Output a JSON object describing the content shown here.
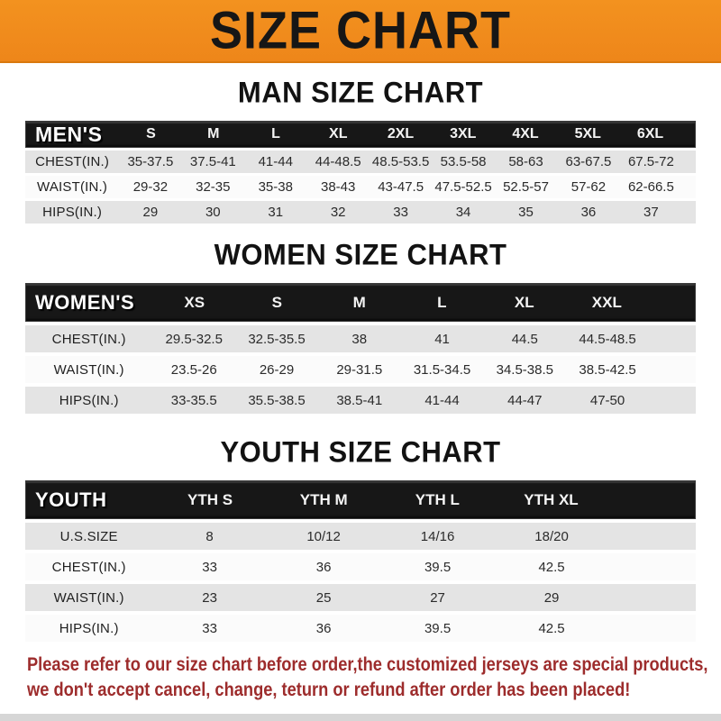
{
  "banner": {
    "title": "SIZE CHART"
  },
  "colors": {
    "banner_bg": "#EE861A",
    "band_bg": "#171717",
    "row_alt_bg": "#E4E4E4",
    "row_bg": "#FBFBFB",
    "note_red": "#9D2C2C"
  },
  "sections": [
    {
      "heading": "MAN SIZE CHART",
      "band_label": "MEN'S",
      "columns": [
        "S",
        "M",
        "L",
        "XL",
        "2XL",
        "3XL",
        "4XL",
        "5XL",
        "6XL"
      ],
      "rows": [
        {
          "label": "CHEST(IN.)",
          "values": [
            "35-37.5",
            "37.5-41",
            "41-44",
            "44-48.5",
            "48.5-53.5",
            "53.5-58",
            "58-63",
            "63-67.5",
            "67.5-72"
          ]
        },
        {
          "label": "WAIST(IN.)",
          "values": [
            "29-32",
            "32-35",
            "35-38",
            "38-43",
            "43-47.5",
            "47.5-52.5",
            "52.5-57",
            "57-62",
            "62-66.5"
          ]
        },
        {
          "label": "HIPS(IN.)",
          "values": [
            "29",
            "30",
            "31",
            "32",
            "33",
            "34",
            "35",
            "36",
            "37"
          ]
        }
      ]
    },
    {
      "heading": "WOMEN SIZE CHART",
      "band_label": "WOMEN'S",
      "columns": [
        "XS",
        "S",
        "M",
        "L",
        "XL",
        "XXL"
      ],
      "rows": [
        {
          "label": "CHEST(IN.)",
          "values": [
            "29.5-32.5",
            "32.5-35.5",
            "38",
            "41",
            "44.5",
            "44.5-48.5"
          ]
        },
        {
          "label": "WAIST(IN.)",
          "values": [
            "23.5-26",
            "26-29",
            "29-31.5",
            "31.5-34.5",
            "34.5-38.5",
            "38.5-42.5"
          ]
        },
        {
          "label": "HIPS(IN.)",
          "values": [
            "33-35.5",
            "35.5-38.5",
            "38.5-41",
            "41-44",
            "44-47",
            "47-50"
          ]
        }
      ]
    },
    {
      "heading": "YOUTH SIZE CHART",
      "band_label": "YOUTH",
      "columns": [
        "YTH S",
        "YTH M",
        "YTH L",
        "YTH XL"
      ],
      "rows": [
        {
          "label": "U.S.SIZE",
          "values": [
            "8",
            "10/12",
            "14/16",
            "18/20"
          ]
        },
        {
          "label": "CHEST(IN.)",
          "values": [
            "33",
            "36",
            "39.5",
            "42.5"
          ]
        },
        {
          "label": "WAIST(IN.)",
          "values": [
            "23",
            "25",
            "27",
            "29"
          ]
        },
        {
          "label": "HIPS(IN.)",
          "values": [
            "33",
            "36",
            "39.5",
            "42.5"
          ]
        }
      ]
    }
  ],
  "note": {
    "line1": "Please refer to our size chart before order,the customized jerseys are special products,",
    "line2": "we don't accept cancel, change, teturn or refund after order has been placed!"
  }
}
